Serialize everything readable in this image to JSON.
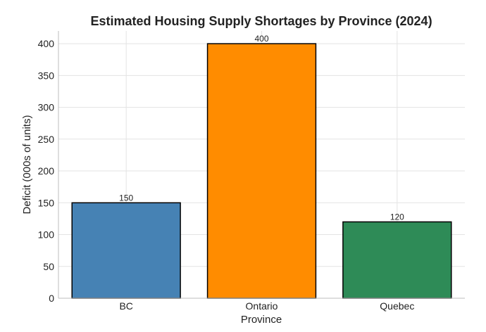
{
  "chart_data": {
    "type": "bar",
    "title": "Estimated Housing Supply Shortages by Province (2024)",
    "xlabel": "Province",
    "ylabel": "Deficit (000s of units)",
    "categories": [
      "BC",
      "Ontario",
      "Quebec"
    ],
    "values": [
      150,
      400,
      120
    ],
    "value_labels": [
      "150",
      "400",
      "120"
    ],
    "colors": [
      "#4682b4",
      "#ff8c00",
      "#2e8b57"
    ],
    "ylim": [
      0,
      420
    ],
    "yticks": [
      0,
      50,
      100,
      150,
      200,
      250,
      300,
      350,
      400
    ],
    "grid": true,
    "legend": "none"
  }
}
